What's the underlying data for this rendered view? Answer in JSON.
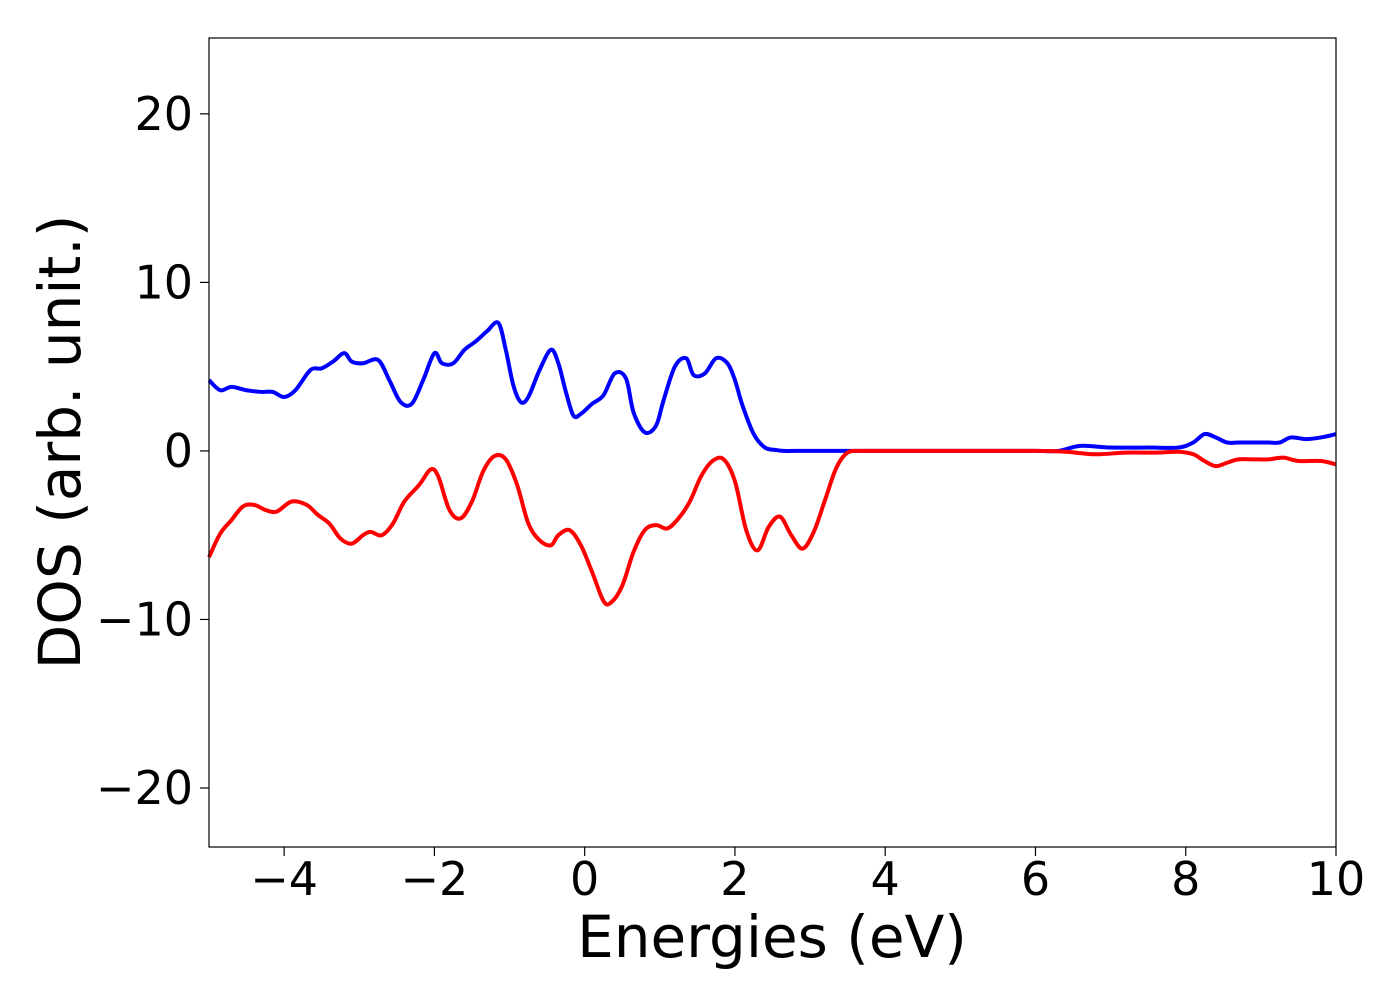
{
  "chart_data": {
    "type": "line",
    "xlabel": "Energies (eV)",
    "ylabel": "DOS (arb. unit.)",
    "xlim": [
      -5,
      10
    ],
    "ylim": [
      -23.5,
      24.5
    ],
    "xticks": [
      -4,
      -2,
      0,
      2,
      4,
      6,
      8,
      10
    ],
    "xtick_labels": [
      "−4",
      "−2",
      "0",
      "2",
      "4",
      "6",
      "8",
      "10"
    ],
    "yticks": [
      -20,
      -10,
      0,
      10,
      20
    ],
    "ytick_labels": [
      "−20",
      "−10",
      "0",
      "10",
      "20"
    ],
    "grid": false,
    "legend": "none",
    "series": [
      {
        "color": "#0000ff",
        "x": [
          -5.0,
          -4.85,
          -4.7,
          -4.5,
          -4.3,
          -4.15,
          -4.0,
          -3.85,
          -3.65,
          -3.5,
          -3.35,
          -3.2,
          -3.1,
          -2.95,
          -2.75,
          -2.6,
          -2.45,
          -2.3,
          -2.15,
          -2.0,
          -1.9,
          -1.75,
          -1.6,
          -1.45,
          -1.3,
          -1.15,
          -1.05,
          -0.95,
          -0.85,
          -0.75,
          -0.6,
          -0.45,
          -0.35,
          -0.25,
          -0.15,
          -0.05,
          0.1,
          0.25,
          0.4,
          0.55,
          0.65,
          0.8,
          0.95,
          1.05,
          1.2,
          1.35,
          1.45,
          1.6,
          1.75,
          1.9,
          2.0,
          2.1,
          2.25,
          2.4,
          2.55,
          2.65,
          2.8,
          3.2,
          4.0,
          5.0,
          6.0,
          6.3,
          6.6,
          7.0,
          7.5,
          7.9,
          8.1,
          8.25,
          8.4,
          8.55,
          8.7,
          8.9,
          9.1,
          9.25,
          9.4,
          9.6,
          9.8,
          10.0
        ],
        "y": [
          4.2,
          3.6,
          3.8,
          3.6,
          3.5,
          3.5,
          3.2,
          3.6,
          4.8,
          4.9,
          5.3,
          5.8,
          5.3,
          5.2,
          5.4,
          4.2,
          2.9,
          2.8,
          4.2,
          5.8,
          5.2,
          5.2,
          6.0,
          6.5,
          7.1,
          7.6,
          6.0,
          3.9,
          2.9,
          3.2,
          4.8,
          6.0,
          5.2,
          3.5,
          2.1,
          2.2,
          2.8,
          3.3,
          4.6,
          4.3,
          2.3,
          1.1,
          1.5,
          3.0,
          5.0,
          5.5,
          4.5,
          4.6,
          5.5,
          5.2,
          4.2,
          2.7,
          1.0,
          0.2,
          0.05,
          0.0,
          0.0,
          0.0,
          0.0,
          0.0,
          0.0,
          0.0,
          0.3,
          0.2,
          0.2,
          0.2,
          0.5,
          1.0,
          0.8,
          0.5,
          0.5,
          0.5,
          0.5,
          0.5,
          0.8,
          0.7,
          0.8,
          1.0
        ]
      },
      {
        "color": "#ff0000",
        "x": [
          -5.0,
          -4.85,
          -4.7,
          -4.55,
          -4.4,
          -4.25,
          -4.1,
          -3.9,
          -3.7,
          -3.55,
          -3.4,
          -3.25,
          -3.1,
          -2.95,
          -2.85,
          -2.7,
          -2.55,
          -2.4,
          -2.2,
          -2.05,
          -1.95,
          -1.8,
          -1.65,
          -1.5,
          -1.35,
          -1.2,
          -1.05,
          -0.9,
          -0.75,
          -0.6,
          -0.45,
          -0.35,
          -0.2,
          -0.05,
          0.1,
          0.25,
          0.35,
          0.5,
          0.65,
          0.8,
          0.95,
          1.1,
          1.25,
          1.4,
          1.55,
          1.7,
          1.85,
          2.0,
          2.15,
          2.3,
          2.45,
          2.6,
          2.75,
          2.9,
          3.05,
          3.2,
          3.35,
          3.5,
          3.7,
          4.0,
          5.0,
          6.0,
          6.4,
          6.8,
          7.2,
          7.6,
          7.9,
          8.1,
          8.25,
          8.4,
          8.55,
          8.7,
          8.9,
          9.1,
          9.3,
          9.5,
          9.8,
          10.0
        ],
        "y": [
          -6.3,
          -4.9,
          -4.1,
          -3.3,
          -3.2,
          -3.5,
          -3.6,
          -3.0,
          -3.2,
          -3.8,
          -4.3,
          -5.2,
          -5.5,
          -5.0,
          -4.8,
          -5.0,
          -4.3,
          -3.0,
          -2.0,
          -1.1,
          -1.5,
          -3.5,
          -4.0,
          -3.0,
          -1.2,
          -0.3,
          -0.5,
          -2.0,
          -4.3,
          -5.3,
          -5.6,
          -5.0,
          -4.7,
          -5.6,
          -7.2,
          -8.9,
          -9.0,
          -8.0,
          -6.0,
          -4.7,
          -4.4,
          -4.6,
          -4.0,
          -3.0,
          -1.5,
          -0.6,
          -0.5,
          -1.8,
          -4.7,
          -5.9,
          -4.5,
          -3.9,
          -5.0,
          -5.8,
          -4.8,
          -2.9,
          -1.0,
          -0.1,
          0.0,
          0.0,
          0.0,
          0.0,
          -0.05,
          -0.2,
          -0.1,
          -0.1,
          -0.05,
          -0.2,
          -0.6,
          -0.9,
          -0.7,
          -0.5,
          -0.5,
          -0.5,
          -0.4,
          -0.6,
          -0.6,
          -0.8
        ]
      }
    ]
  }
}
